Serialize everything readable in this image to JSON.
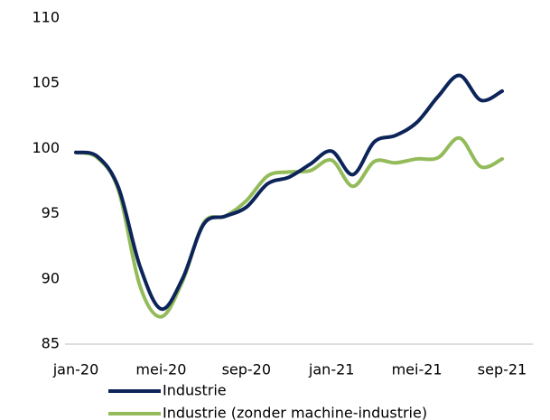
{
  "chart_data": {
    "type": "line",
    "categories": [
      "jan-20",
      null,
      null,
      null,
      "mei-20",
      null,
      null,
      null,
      "sep-20",
      null,
      null,
      null,
      "jan-21",
      null,
      null,
      null,
      "mei-21",
      null,
      null,
      null,
      "sep-21"
    ],
    "series": [
      {
        "name": "Industrie",
        "color": "#0c2459",
        "values": [
          99.7,
          99.4,
          97,
          91,
          87.7,
          90,
          94.2,
          94.8,
          95.5,
          97.3,
          97.8,
          98.8,
          99.8,
          98,
          100.5,
          101,
          102,
          104,
          105.6,
          103.7,
          104.4
        ]
      },
      {
        "name": "Industrie (zonder machine-industrie)",
        "color": "#93bb5a",
        "values": [
          99.7,
          99.3,
          96.8,
          89.5,
          87.1,
          89.8,
          94.3,
          94.8,
          96,
          97.9,
          98.2,
          98.3,
          99.1,
          97.1,
          99,
          98.9,
          99.2,
          99.3,
          100.8,
          98.6,
          99.2
        ]
      }
    ],
    "ylim": [
      85,
      110
    ],
    "yticks": [
      85,
      90,
      95,
      100,
      105,
      110
    ],
    "grid": false,
    "legend": "bottom"
  }
}
